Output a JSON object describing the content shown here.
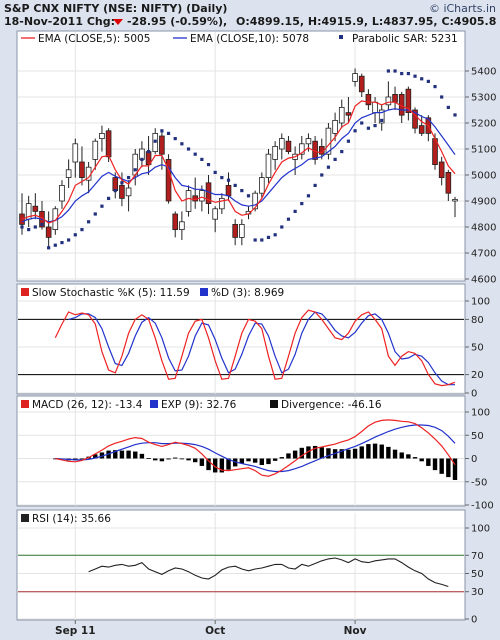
{
  "header": {
    "title": "S&P CNX NIFTY (NSE: NIFTY) (Daily)",
    "date_line": "18-Nov-2011 Chg:",
    "change": "-28.95 (-0.59%),",
    "ohlc": "O:4899.15, H:4915.9, L:4837.95, C:4905.8",
    "watermark": "© iCharts.in",
    "down_color": "#dd0000"
  },
  "chart_data": [
    {
      "type": "candlestick",
      "panel": "price",
      "ylim": [
        4600,
        5500
      ],
      "yticks": [
        "4600",
        "4700",
        "4800",
        "4900",
        "5000",
        "5100",
        "5200",
        "5300",
        "5400"
      ],
      "legend": {
        "ema5": "EMA (CLOSE,5): 5005",
        "ema10": "EMA (CLOSE,10): 5078",
        "sar": "Parabolic SAR: 5231"
      },
      "colors": {
        "up": "#ffffff",
        "down": "#b01e1e",
        "ema5": "#ee2222",
        "ema10": "#2233cc",
        "sar": "#22317e"
      },
      "candles": [
        {
          "o": 4850,
          "h": 4930,
          "l": 4770,
          "c": 4810
        },
        {
          "o": 4830,
          "h": 4920,
          "l": 4800,
          "c": 4890
        },
        {
          "o": 4880,
          "h": 4930,
          "l": 4830,
          "c": 4860
        },
        {
          "o": 4860,
          "h": 4900,
          "l": 4790,
          "c": 4800
        },
        {
          "o": 4800,
          "h": 4860,
          "l": 4720,
          "c": 4760
        },
        {
          "o": 4790,
          "h": 4880,
          "l": 4770,
          "c": 4870
        },
        {
          "o": 4900,
          "h": 4980,
          "l": 4870,
          "c": 4960
        },
        {
          "o": 4990,
          "h": 5060,
          "l": 4950,
          "c": 5020
        },
        {
          "o": 5050,
          "h": 5140,
          "l": 4990,
          "c": 5120
        },
        {
          "o": 5050,
          "h": 5110,
          "l": 4960,
          "c": 4990
        },
        {
          "o": 4980,
          "h": 5050,
          "l": 4930,
          "c": 5030
        },
        {
          "o": 5060,
          "h": 5140,
          "l": 5020,
          "c": 5130
        },
        {
          "o": 5140,
          "h": 5190,
          "l": 5090,
          "c": 5160
        },
        {
          "o": 5170,
          "h": 5180,
          "l": 5050,
          "c": 5070
        },
        {
          "o": 4990,
          "h": 5010,
          "l": 4910,
          "c": 4940
        },
        {
          "o": 4960,
          "h": 5010,
          "l": 4880,
          "c": 4910
        },
        {
          "o": 4920,
          "h": 4980,
          "l": 4860,
          "c": 4950
        },
        {
          "o": 5000,
          "h": 5100,
          "l": 4960,
          "c": 5080
        },
        {
          "o": 5060,
          "h": 5130,
          "l": 5030,
          "c": 5100
        },
        {
          "o": 5090,
          "h": 5150,
          "l": 5000,
          "c": 5040
        },
        {
          "o": 5090,
          "h": 5180,
          "l": 5080,
          "c": 5160
        },
        {
          "o": 5150,
          "h": 5170,
          "l": 5020,
          "c": 5080
        },
        {
          "o": 5060,
          "h": 5080,
          "l": 4890,
          "c": 4900
        },
        {
          "o": 4850,
          "h": 4860,
          "l": 4760,
          "c": 4790
        },
        {
          "o": 4790,
          "h": 4860,
          "l": 4750,
          "c": 4820
        },
        {
          "o": 4860,
          "h": 4960,
          "l": 4840,
          "c": 4940
        },
        {
          "o": 4920,
          "h": 4990,
          "l": 4870,
          "c": 4900
        },
        {
          "o": 4900,
          "h": 4960,
          "l": 4860,
          "c": 4940
        },
        {
          "o": 4970,
          "h": 5000,
          "l": 4850,
          "c": 4890
        },
        {
          "o": 4830,
          "h": 4880,
          "l": 4780,
          "c": 4870
        },
        {
          "o": 4870,
          "h": 4930,
          "l": 4850,
          "c": 4910
        },
        {
          "o": 4960,
          "h": 5010,
          "l": 4900,
          "c": 4920
        },
        {
          "o": 4810,
          "h": 4830,
          "l": 4730,
          "c": 4760
        },
        {
          "o": 4760,
          "h": 4830,
          "l": 4730,
          "c": 4810
        },
        {
          "o": 4850,
          "h": 4880,
          "l": 4830,
          "c": 4860
        },
        {
          "o": 4870,
          "h": 4940,
          "l": 4860,
          "c": 4930
        },
        {
          "o": 4930,
          "h": 5010,
          "l": 4910,
          "c": 4990
        },
        {
          "o": 4990,
          "h": 5100,
          "l": 4970,
          "c": 5080
        },
        {
          "o": 5060,
          "h": 5130,
          "l": 5020,
          "c": 5110
        },
        {
          "o": 5100,
          "h": 5160,
          "l": 5060,
          "c": 5140
        },
        {
          "o": 5130,
          "h": 5150,
          "l": 5080,
          "c": 5090
        },
        {
          "o": 5060,
          "h": 5110,
          "l": 5000,
          "c": 5080
        },
        {
          "o": 5080,
          "h": 5150,
          "l": 5060,
          "c": 5120
        },
        {
          "o": 5120,
          "h": 5160,
          "l": 5090,
          "c": 5140
        },
        {
          "o": 5130,
          "h": 5150,
          "l": 5040,
          "c": 5060
        },
        {
          "o": 5110,
          "h": 5140,
          "l": 5060,
          "c": 5080
        },
        {
          "o": 5080,
          "h": 5200,
          "l": 5060,
          "c": 5180
        },
        {
          "o": 5160,
          "h": 5240,
          "l": 5130,
          "c": 5210
        },
        {
          "o": 5200,
          "h": 5290,
          "l": 5180,
          "c": 5260
        },
        {
          "o": 5240,
          "h": 5300,
          "l": 5200,
          "c": 5230
        },
        {
          "o": 5360,
          "h": 5410,
          "l": 5340,
          "c": 5390
        },
        {
          "o": 5380,
          "h": 5390,
          "l": 5300,
          "c": 5320
        },
        {
          "o": 5310,
          "h": 5330,
          "l": 5250,
          "c": 5270
        },
        {
          "o": 5240,
          "h": 5300,
          "l": 5200,
          "c": 5280
        },
        {
          "o": 5200,
          "h": 5270,
          "l": 5170,
          "c": 5250
        },
        {
          "o": 5270,
          "h": 5360,
          "l": 5250,
          "c": 5300
        },
        {
          "o": 5310,
          "h": 5340,
          "l": 5250,
          "c": 5280
        },
        {
          "o": 5310,
          "h": 5320,
          "l": 5200,
          "c": 5230
        },
        {
          "o": 5330,
          "h": 5340,
          "l": 5210,
          "c": 5240
        },
        {
          "o": 5250,
          "h": 5260,
          "l": 5160,
          "c": 5180
        },
        {
          "o": 5190,
          "h": 5230,
          "l": 5150,
          "c": 5160
        },
        {
          "o": 5220,
          "h": 5230,
          "l": 5130,
          "c": 5160
        },
        {
          "o": 5140,
          "h": 5160,
          "l": 5020,
          "c": 5040
        },
        {
          "o": 5050,
          "h": 5070,
          "l": 4960,
          "c": 4990
        },
        {
          "o": 5010,
          "h": 5020,
          "l": 4900,
          "c": 4930
        },
        {
          "o": 4900,
          "h": 4916,
          "l": 4838,
          "c": 4906
        }
      ],
      "ema5": [
        4830,
        4840,
        4845,
        4835,
        4815,
        4825,
        4860,
        4900,
        4960,
        4975,
        4990,
        5030,
        5070,
        5075,
        5020,
        4980,
        4965,
        5000,
        5035,
        5035,
        5075,
        5075,
        5020,
        4940,
        4900,
        4910,
        4905,
        4915,
        4905,
        4895,
        4900,
        4905,
        4860,
        4845,
        4850,
        4875,
        4910,
        4965,
        5010,
        5050,
        5065,
        5070,
        5085,
        5105,
        5090,
        5085,
        5115,
        5145,
        5185,
        5200,
        5265,
        5285,
        5280,
        5280,
        5270,
        5280,
        5280,
        5265,
        5255,
        5230,
        5205,
        5190,
        5140,
        5090,
        5035,
        5005
      ],
      "ema10": [
        4820,
        4830,
        4835,
        4830,
        4820,
        4825,
        4840,
        4865,
        4900,
        4920,
        4935,
        4965,
        4995,
        5010,
        4995,
        4985,
        4975,
        4990,
        5005,
        5010,
        5030,
        5040,
        5030,
        4990,
        4960,
        4955,
        4945,
        4945,
        4935,
        4925,
        4925,
        4920,
        4900,
        4885,
        4880,
        4885,
        4900,
        4930,
        4960,
        4990,
        5010,
        5025,
        5040,
        5060,
        5065,
        5070,
        5090,
        5110,
        5140,
        5160,
        5200,
        5220,
        5230,
        5240,
        5240,
        5250,
        5255,
        5250,
        5250,
        5240,
        5225,
        5215,
        5185,
        5150,
        5115,
        5078
      ],
      "sar": [
        4800,
        4790,
        4800,
        4810,
        4720,
        4730,
        4740,
        4750,
        4770,
        4790,
        4820,
        4850,
        4880,
        4910,
        4940,
        4970,
        4990,
        5020,
        5060,
        5090,
        5130,
        5170,
        5160,
        5140,
        5120,
        5100,
        5080,
        5060,
        5040,
        5010,
        4990,
        4980,
        4960,
        4940,
        4920,
        4750,
        4750,
        4760,
        4770,
        4800,
        4830,
        4860,
        4890,
        4920,
        4960,
        5000,
        5030,
        5060,
        5090,
        5130,
        5170,
        5200,
        5180,
        5190,
        5210,
        5400,
        5400,
        5390,
        5390,
        5380,
        5370,
        5360,
        5340,
        5300,
        5260,
        5231
      ]
    },
    {
      "type": "line",
      "panel": "stochastic",
      "ylim": [
        0,
        100
      ],
      "yticks": [
        "0",
        "20",
        "50",
        "80",
        "100"
      ],
      "levels": [
        20,
        80
      ],
      "legend": {
        "k": "Slow Stochastic %K (5): 11.59",
        "d": "%D (3): 8.969"
      },
      "colors": {
        "k": "#ee2222",
        "d": "#2233cc",
        "level": "#000000"
      },
      "k": [
        60,
        75,
        88,
        85,
        87,
        85,
        75,
        45,
        25,
        22,
        40,
        65,
        80,
        85,
        80,
        60,
        35,
        15,
        16,
        40,
        65,
        78,
        80,
        60,
        35,
        15,
        16,
        40,
        65,
        80,
        78,
        70,
        40,
        15,
        16,
        40,
        65,
        82,
        90,
        88,
        80,
        70,
        60,
        58,
        65,
        78,
        85,
        88,
        80,
        70,
        40,
        30,
        40,
        45,
        43,
        35,
        20,
        10,
        8,
        9,
        11.59
      ],
      "d": [
        null,
        null,
        80,
        82,
        86,
        86,
        82,
        70,
        50,
        32,
        30,
        43,
        62,
        77,
        82,
        76,
        60,
        38,
        24,
        25,
        40,
        62,
        76,
        74,
        58,
        38,
        22,
        26,
        42,
        62,
        76,
        75,
        62,
        40,
        22,
        26,
        42,
        65,
        80,
        88,
        86,
        78,
        68,
        62,
        60,
        66,
        76,
        84,
        86,
        80,
        65,
        45,
        37,
        38,
        42,
        40,
        33,
        22,
        13,
        9,
        8.969
      ]
    },
    {
      "type": "bar+line",
      "panel": "macd",
      "ylim": [
        -100,
        100
      ],
      "yticks": [
        "-100",
        "-50",
        "0",
        "50",
        "100"
      ],
      "legend": {
        "macd": "MACD (26, 12): -13.4",
        "signal": "EXP (9): 32.76",
        "divergence": "Divergence: -46.16"
      },
      "colors": {
        "macd": "#ee2222",
        "signal": "#2233cc",
        "divergence": "#000000"
      },
      "macd": [
        0,
        -3,
        -6,
        -7,
        -4,
        2,
        10,
        18,
        27,
        33,
        37,
        42,
        45,
        43,
        35,
        30,
        26,
        30,
        35,
        32,
        28,
        22,
        10,
        -5,
        -18,
        -25,
        -26,
        -24,
        -22,
        -20,
        -26,
        -36,
        -38,
        -33,
        -25,
        -15,
        -5,
        6,
        15,
        22,
        25,
        28,
        31,
        36,
        40,
        47,
        58,
        70,
        78,
        82,
        83,
        82,
        80,
        79,
        75,
        66,
        55,
        42,
        27,
        8,
        -13.4
      ],
      "signal": [
        0,
        -1,
        -2,
        -3,
        -3,
        -2,
        1,
        5,
        10,
        15,
        20,
        25,
        30,
        33,
        34,
        34,
        32,
        32,
        33,
        33,
        32,
        30,
        26,
        20,
        12,
        5,
        -2,
        -7,
        -11,
        -14,
        -17,
        -22,
        -26,
        -28,
        -28,
        -26,
        -22,
        -17,
        -11,
        -5,
        1,
        6,
        11,
        16,
        21,
        26,
        32,
        39,
        46,
        52,
        58,
        63,
        67,
        70,
        72,
        72,
        71,
        67,
        60,
        48,
        32.76
      ],
      "divergence": [
        0,
        -2,
        -4,
        -4,
        -1,
        4,
        9,
        13,
        17,
        18,
        17,
        17,
        15,
        10,
        1,
        -4,
        -6,
        -2,
        2,
        -1,
        -4,
        -8,
        -16,
        -25,
        -30,
        -30,
        -24,
        -17,
        -11,
        -6,
        -9,
        -14,
        -12,
        -5,
        3,
        11,
        17,
        23,
        26,
        27,
        24,
        22,
        20,
        20,
        19,
        21,
        26,
        31,
        32,
        30,
        25,
        19,
        13,
        9,
        3,
        -6,
        -16,
        -25,
        -33,
        -40,
        -46.16
      ]
    },
    {
      "type": "line",
      "panel": "rsi",
      "ylim": [
        0,
        100
      ],
      "yticks": [
        "0",
        "30",
        "50",
        "70",
        "100"
      ],
      "levels": [
        30,
        70
      ],
      "legend": {
        "rsi": "RSI (14): 35.66"
      },
      "colors": {
        "rsi": "#222222",
        "lower_level": "#aa3333",
        "upper_level": "#337733"
      },
      "start_offset": 10,
      "rsi": [
        52,
        55,
        58,
        57,
        59,
        60,
        58,
        59,
        62,
        55,
        52,
        49,
        53,
        56,
        55,
        52,
        48,
        45,
        44,
        48,
        54,
        57,
        58,
        55,
        53,
        55,
        56,
        58,
        60,
        60,
        56,
        55,
        60,
        58,
        61,
        64,
        66,
        67,
        65,
        62,
        66,
        63,
        62,
        64,
        65,
        66,
        66,
        62,
        57,
        53,
        50,
        44,
        40,
        38,
        35.66
      ]
    }
  ],
  "x_axis": {
    "labels": [
      "Sep 11",
      "Oct",
      "Nov"
    ],
    "label_bars": [
      8,
      29,
      50
    ]
  }
}
